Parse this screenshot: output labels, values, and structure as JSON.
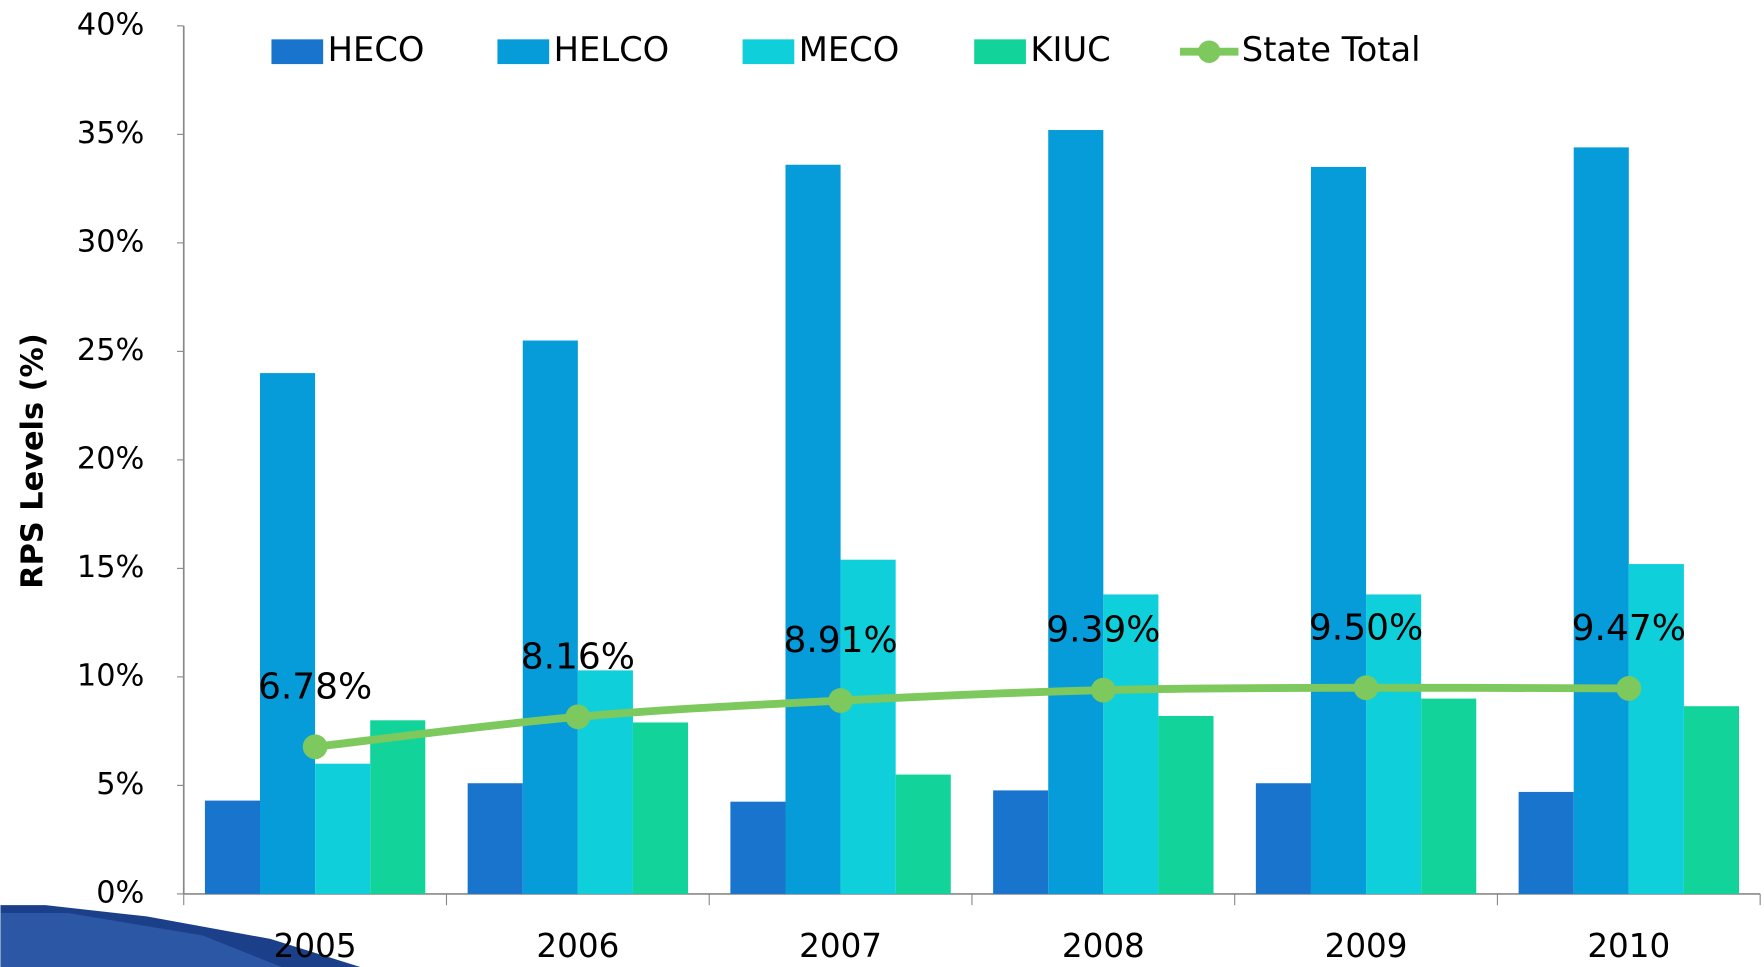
{
  "chart_data": {
    "type": "bar",
    "y_label": "RPS Levels (%)",
    "categories": [
      "2005",
      "2006",
      "2007",
      "2008",
      "2009",
      "2010"
    ],
    "series": [
      {
        "name": "HECO",
        "color": "#1874cd",
        "values": [
          4.3,
          5.1,
          4.25,
          4.77,
          5.1,
          4.7
        ]
      },
      {
        "name": "HELCO",
        "color": "#069bd9",
        "values": [
          24.0,
          25.5,
          33.6,
          35.2,
          33.5,
          34.4
        ]
      },
      {
        "name": "MECO",
        "color": "#0fd0da",
        "values": [
          6.0,
          10.3,
          15.4,
          13.8,
          13.8,
          15.2
        ]
      },
      {
        "name": "KIUC",
        "color": "#12d39a",
        "values": [
          8.0,
          7.9,
          5.5,
          8.2,
          9.0,
          8.65
        ]
      },
      {
        "name": "State Total",
        "type": "line",
        "color": "#7dc95e",
        "values": [
          6.78,
          8.16,
          8.91,
          9.39,
          9.5,
          9.47
        ],
        "value_labels": [
          "6.78%",
          "8.16%",
          "8.91%",
          "9.39%",
          "9.50%",
          "9.47%"
        ]
      }
    ],
    "ylim": [
      0,
      40
    ],
    "yticks": [
      {
        "value": 0,
        "label": "0%"
      },
      {
        "value": 5,
        "label": "5%"
      },
      {
        "value": 10,
        "label": "10%"
      },
      {
        "value": 15,
        "label": "15%"
      },
      {
        "value": 20,
        "label": "20%"
      },
      {
        "value": 25,
        "label": "25%"
      },
      {
        "value": 30,
        "label": "30%"
      },
      {
        "value": 35,
        "label": "35%"
      },
      {
        "value": 40,
        "label": "40%"
      }
    ],
    "legend": "top"
  }
}
